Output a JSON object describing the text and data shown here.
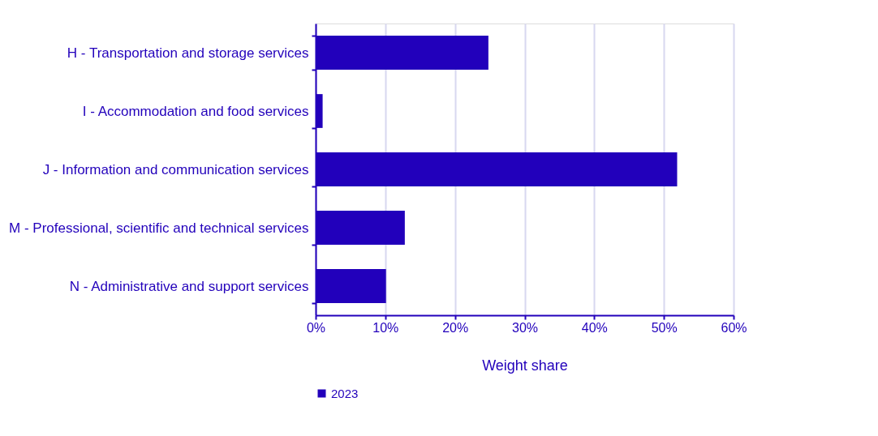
{
  "chart_data": {
    "type": "bar",
    "orientation": "horizontal",
    "xlabel": "Weight share",
    "categories": [
      "H - Transportation and storage services",
      "I - Accommodation and food services",
      "J - Information and communication services",
      "M - Professional, scientific and technical services",
      "N - Administrative and support services"
    ],
    "series": [
      {
        "name": "2023",
        "color": "#2200bb",
        "values": [
          24.8,
          1.0,
          51.9,
          12.8,
          10.1
        ]
      }
    ],
    "xlim": [
      0,
      60
    ],
    "xticks": [
      {
        "value": 0,
        "label": "0%"
      },
      {
        "value": 10,
        "label": "10%"
      },
      {
        "value": 20,
        "label": "20%"
      },
      {
        "value": 30,
        "label": "30%"
      },
      {
        "value": 40,
        "label": "40%"
      },
      {
        "value": 50,
        "label": "50%"
      },
      {
        "value": 60,
        "label": "60%"
      }
    ],
    "grid": "x",
    "legend": "bottom"
  }
}
